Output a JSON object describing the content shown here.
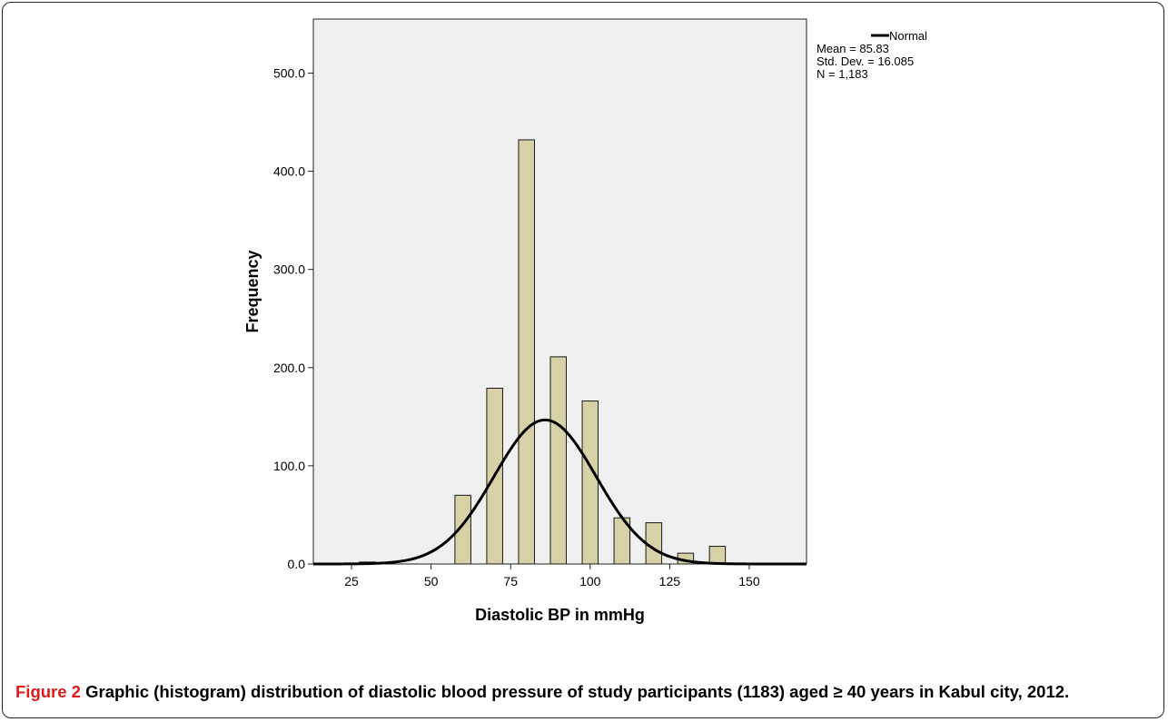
{
  "caption": {
    "label": "Figure 2",
    "text": " Graphic (histogram) distribution of diastolic blood pressure of study participants (1183) aged ≥ 40 years in Kabul city, 2012."
  },
  "chart_data": {
    "type": "bar",
    "title": "",
    "xlabel": "Diastolic BP in mmHg",
    "ylabel": "Frequency",
    "xlim": [
      13,
      168
    ],
    "ylim": [
      0,
      555
    ],
    "x_ticks": [
      25,
      50,
      75,
      100,
      125,
      150
    ],
    "y_ticks": [
      0,
      100,
      200,
      300,
      400,
      500
    ],
    "y_tick_labels": [
      "0.0",
      "100.0",
      "200.0",
      "300.0",
      "400.0",
      "500.0"
    ],
    "bin_width": 5,
    "bins": [
      {
        "x": 30,
        "value": 2
      },
      {
        "x": 60,
        "value": 70
      },
      {
        "x": 70,
        "value": 179
      },
      {
        "x": 80,
        "value": 432
      },
      {
        "x": 90,
        "value": 211
      },
      {
        "x": 100,
        "value": 166
      },
      {
        "x": 110,
        "value": 47
      },
      {
        "x": 120,
        "value": 42
      },
      {
        "x": 130,
        "value": 11
      },
      {
        "x": 140,
        "value": 18
      }
    ],
    "normal_curve": {
      "mean": 85.83,
      "sd": 16.085,
      "n": 1183
    },
    "legend": {
      "placement": "top-right",
      "entry": "Normal",
      "stats": [
        "Mean = 85.83",
        "Std. Dev. = 16.085",
        "N = 1,183"
      ]
    },
    "colors": {
      "bar_fill": "#d6d1a6",
      "bar_stroke": "#1a1a1a",
      "plot_bg": "#f0f0f0",
      "curve": "#000000"
    },
    "grid": false
  }
}
